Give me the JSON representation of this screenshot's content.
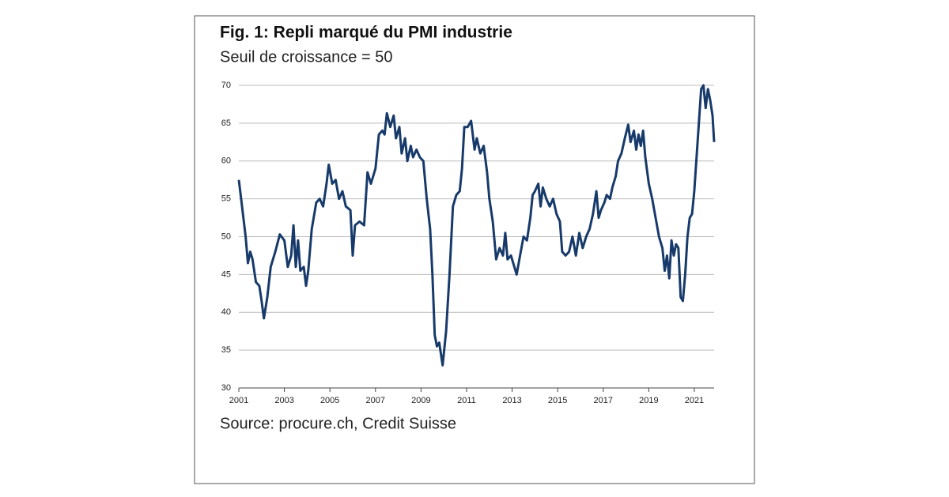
{
  "chart_data": {
    "type": "line",
    "title": "Fig. 1: Repli marqué du PMI industrie",
    "subtitle": "Seuil de croissance = 50",
    "source": "Source: procure.ch, Credit Suisse",
    "xlim": [
      2001,
      2021.87
    ],
    "xticks": [
      2001,
      2003,
      2005,
      2007,
      2009,
      2011,
      2013,
      2015,
      2017,
      2019,
      2021
    ],
    "ylim": [
      30,
      70
    ],
    "yticks": [
      30,
      35,
      40,
      45,
      50,
      55,
      60,
      65,
      70
    ],
    "grid": true,
    "series": [
      {
        "color": "#173a6a",
        "x": [
          2001.0,
          2001.1,
          2001.3,
          2001.4,
          2001.5,
          2001.6,
          2001.75,
          2001.9,
          2002.0,
          2002.1,
          2002.25,
          2002.4,
          2002.6,
          2002.8,
          2003.0,
          2003.15,
          2003.3,
          2003.4,
          2003.5,
          2003.6,
          2003.7,
          2003.85,
          2003.95,
          2004.05,
          2004.2,
          2004.4,
          2004.55,
          2004.7,
          2004.85,
          2004.95,
          2005.1,
          2005.25,
          2005.4,
          2005.55,
          2005.7,
          2005.9,
          2006.0,
          2006.1,
          2006.3,
          2006.5,
          2006.65,
          2006.8,
          2007.0,
          2007.15,
          2007.3,
          2007.4,
          2007.5,
          2007.65,
          2007.8,
          2007.9,
          2008.05,
          2008.15,
          2008.3,
          2008.4,
          2008.55,
          2008.65,
          2008.8,
          2008.95,
          2009.1,
          2009.25,
          2009.4,
          2009.5,
          2009.6,
          2009.7,
          2009.8,
          2009.95,
          2010.1,
          2010.25,
          2010.4,
          2010.55,
          2010.7,
          2010.8,
          2010.9,
          2011.05,
          2011.2,
          2011.35,
          2011.45,
          2011.6,
          2011.75,
          2011.9,
          2012.0,
          2012.15,
          2012.3,
          2012.45,
          2012.6,
          2012.7,
          2012.8,
          2012.95,
          2013.1,
          2013.2,
          2013.35,
          2013.5,
          2013.65,
          2013.8,
          2013.9,
          2014.0,
          2014.15,
          2014.25,
          2014.35,
          2014.5,
          2014.65,
          2014.8,
          2014.95,
          2015.1,
          2015.2,
          2015.35,
          2015.5,
          2015.65,
          2015.8,
          2015.95,
          2016.1,
          2016.25,
          2016.4,
          2016.55,
          2016.7,
          2016.8,
          2016.9,
          2017.05,
          2017.15,
          2017.3,
          2017.4,
          2017.55,
          2017.65,
          2017.8,
          2017.95,
          2018.1,
          2018.2,
          2018.35,
          2018.45,
          2018.55,
          2018.65,
          2018.75,
          2018.85,
          2019.0,
          2019.15,
          2019.3,
          2019.45,
          2019.6,
          2019.7,
          2019.8,
          2019.9,
          2020.0,
          2020.1,
          2020.2,
          2020.3,
          2020.4,
          2020.5,
          2020.6,
          2020.7,
          2020.8,
          2020.9,
          2021.0,
          2021.1,
          2021.2,
          2021.3,
          2021.4,
          2021.5,
          2021.6,
          2021.7,
          2021.8,
          2021.87
        ],
        "values": [
          57.5,
          55,
          50,
          46.5,
          48,
          47,
          44,
          43.5,
          41.5,
          39.2,
          42,
          46,
          48,
          50.3,
          49.5,
          46,
          47.5,
          51.5,
          46,
          49.5,
          45.5,
          46,
          43.5,
          45.5,
          51,
          54.5,
          55,
          54,
          57,
          59.5,
          57,
          57.5,
          55,
          56,
          54,
          53.5,
          47.5,
          51.5,
          52,
          51.5,
          58.5,
          57,
          59,
          63.5,
          64,
          63.5,
          66.3,
          64.5,
          66,
          63,
          64.5,
          61,
          63,
          60,
          62,
          60.5,
          61.5,
          60.5,
          60,
          55,
          51,
          45,
          37,
          35.5,
          36,
          33,
          37.5,
          45,
          54,
          55.5,
          56,
          59,
          64.5,
          64.5,
          65.3,
          61.5,
          63,
          61,
          62,
          58.5,
          55,
          52,
          47,
          48.5,
          47.5,
          50.5,
          47,
          47.5,
          46,
          45,
          47.5,
          50,
          49.5,
          52.5,
          55.5,
          56,
          57,
          54,
          56.5,
          55,
          54,
          55,
          53,
          52,
          48,
          47.5,
          48,
          50,
          47.5,
          50.5,
          48.5,
          50,
          51,
          53,
          56,
          52.5,
          53.5,
          54.5,
          55.5,
          55,
          56.5,
          58,
          60,
          61,
          63,
          64.8,
          62.5,
          64,
          61.5,
          63.5,
          62,
          64,
          60.5,
          57,
          55,
          52.5,
          50,
          48.5,
          45.5,
          47.5,
          44.5,
          49.5,
          47.5,
          49,
          48.5,
          42,
          41.5,
          45,
          50,
          52.5,
          53,
          56,
          60.5,
          65,
          69.5,
          70,
          67,
          69.5,
          68,
          66,
          62.5
        ]
      }
    ]
  }
}
